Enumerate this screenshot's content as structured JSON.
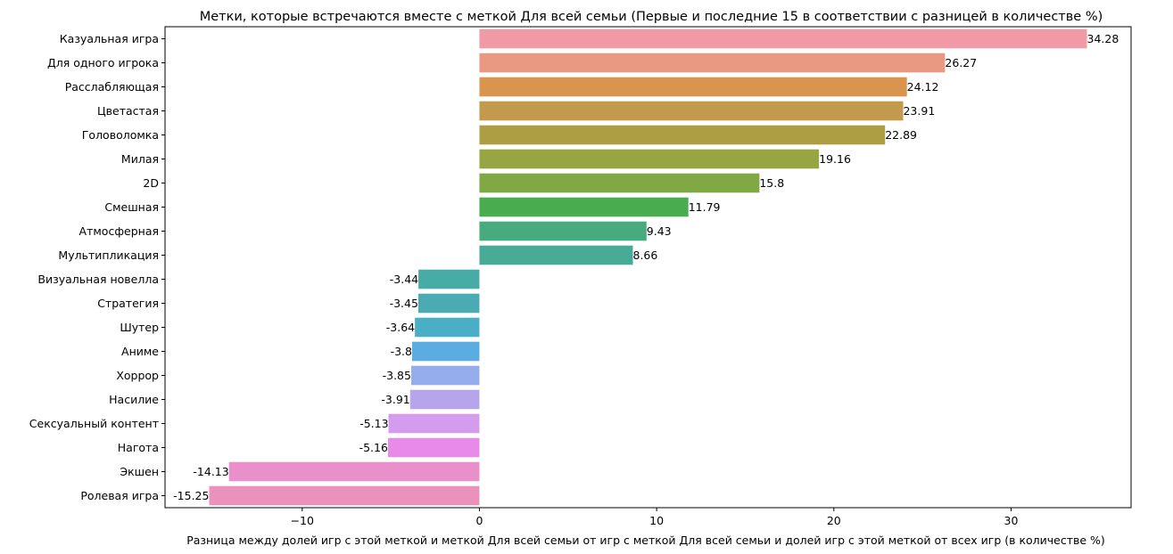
{
  "chart_data": {
    "type": "bar",
    "orientation": "horizontal",
    "title": "Метки, которые встречаются вместе с меткой Для всей семьи (Первые и последние 15 в соответствии с разницей в количестве %)",
    "xlabel": "Разница между долей игр с этой меткой и меткой Для всей семьи от игр с меткой Для всей семьи и долей игр с этой меткой от всех игр (в количестве %)",
    "ylabel": "",
    "xlim": [
      -17.74,
      36.77
    ],
    "xticks": [
      -10,
      0,
      10,
      20,
      30
    ],
    "xtick_labels": [
      "−10",
      "0",
      "10",
      "20",
      "30"
    ],
    "grid": false,
    "categories": [
      "Казуальная игра",
      "Для одного игрока",
      "Расслабляющая",
      "Цветастая",
      "Головоломка",
      "Милая",
      "2D",
      "Смешная",
      "Атмосферная",
      "Мультипликация",
      "Визуальная новелла",
      "Стратегия",
      "Шутер",
      "Аниме",
      "Хоррор",
      "Насилие",
      "Сексуальный контент",
      "Нагота",
      "Экшен",
      "Ролевая игра"
    ],
    "values": [
      34.28,
      26.27,
      24.12,
      23.91,
      22.89,
      19.16,
      15.8,
      11.79,
      9.43,
      8.66,
      -3.44,
      -3.45,
      -3.64,
      -3.8,
      -3.85,
      -3.91,
      -5.13,
      -5.16,
      -14.13,
      -15.25
    ],
    "data_labels": [
      "34.28",
      "26.27",
      "24.12",
      "23.91",
      "22.89",
      "19.16",
      "15.8",
      "11.79",
      "9.43",
      "8.66",
      "-3.44",
      "-3.45",
      "-3.64",
      "-3.8",
      "-3.85",
      "-3.91",
      "-5.13",
      "-5.16",
      "-14.13",
      "-15.25"
    ],
    "colors": [
      "#ef9aa4",
      "#e99882",
      "#d9944d",
      "#c39a4b",
      "#ad9d43",
      "#97a543",
      "#80a844",
      "#49ad4f",
      "#48ab7f",
      "#48ab97",
      "#48aca6",
      "#4aabb3",
      "#4aaec6",
      "#5aace1",
      "#96aded",
      "#b6a4ed",
      "#d39ced",
      "#e78ae8",
      "#e990cb",
      "#ea91bc"
    ]
  }
}
